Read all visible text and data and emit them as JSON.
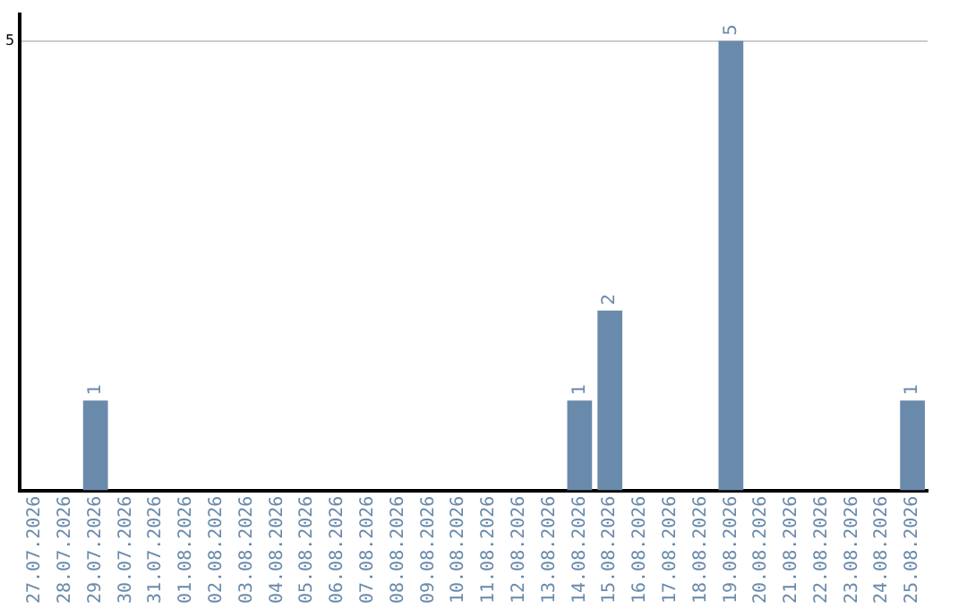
{
  "chart_data": {
    "type": "bar",
    "categories": [
      "27.07.2026",
      "28.07.2026",
      "29.07.2026",
      "30.07.2026",
      "31.07.2026",
      "01.08.2026",
      "02.08.2026",
      "03.08.2026",
      "04.08.2026",
      "05.08.2026",
      "06.08.2026",
      "07.08.2026",
      "08.08.2026",
      "09.08.2026",
      "10.08.2026",
      "11.08.2026",
      "12.08.2026",
      "13.08.2026",
      "14.08.2026",
      "15.08.2026",
      "16.08.2026",
      "17.08.2026",
      "18.08.2026",
      "19.08.2026",
      "20.08.2026",
      "21.08.2026",
      "22.08.2026",
      "23.08.2026",
      "24.08.2026",
      "25.08.2026"
    ],
    "values": [
      0,
      0,
      1,
      0,
      0,
      0,
      0,
      0,
      0,
      0,
      0,
      0,
      0,
      0,
      0,
      0,
      0,
      0,
      1,
      2,
      0,
      0,
      0,
      5,
      0,
      0,
      0,
      0,
      0,
      1
    ],
    "value_labels": [
      null,
      null,
      "1",
      null,
      null,
      null,
      null,
      null,
      null,
      null,
      null,
      null,
      null,
      null,
      null,
      null,
      null,
      null,
      "1",
      "2",
      null,
      null,
      null,
      "5",
      null,
      null,
      null,
      null,
      null,
      "1"
    ],
    "color": "#6a8aab",
    "ylim": [
      0,
      5.3
    ],
    "yticks": [
      5
    ],
    "grid": "y",
    "legend": false
  }
}
